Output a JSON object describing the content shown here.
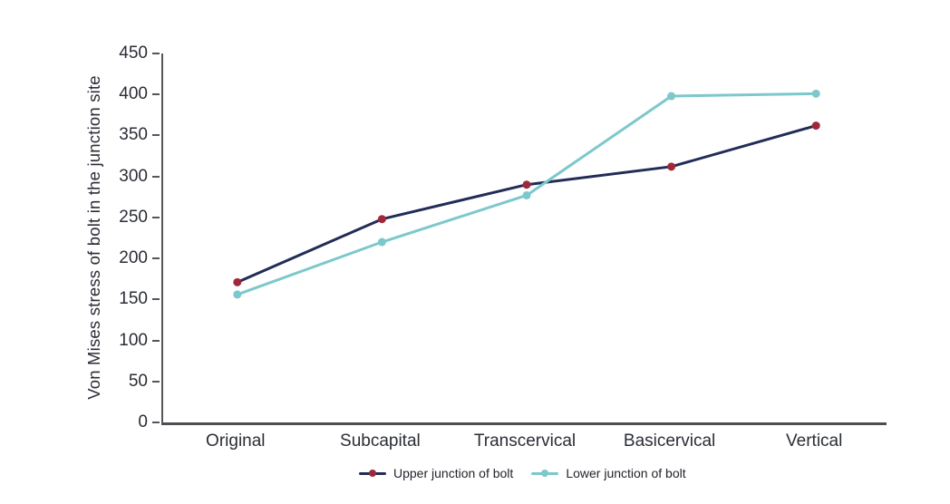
{
  "chart_data": {
    "type": "line",
    "title": "",
    "xlabel": "",
    "ylabel": "Von Mises stress of bolt in the junction site",
    "categories": [
      "Original",
      "Subcapital",
      "Transcervical",
      "Basicervical",
      "Vertical"
    ],
    "series": [
      {
        "name": "Upper junction of bolt",
        "values": [
          171,
          248,
          290,
          312,
          362
        ],
        "line_color": "#222c57",
        "marker_color": "#a02939"
      },
      {
        "name": "Lower junction of bolt",
        "values": [
          156,
          220,
          277,
          398,
          401
        ],
        "line_color": "#7cc8cb",
        "marker_color": "#7cc8cb"
      }
    ],
    "ylim": [
      0,
      450
    ],
    "yticks": [
      0,
      50,
      100,
      150,
      200,
      250,
      300,
      350,
      400,
      450
    ],
    "grid": false,
    "legend_position": "bottom"
  },
  "style": {
    "axis_color": "#55565a",
    "text_color": "#2b2d36",
    "background": "#ffffff"
  }
}
